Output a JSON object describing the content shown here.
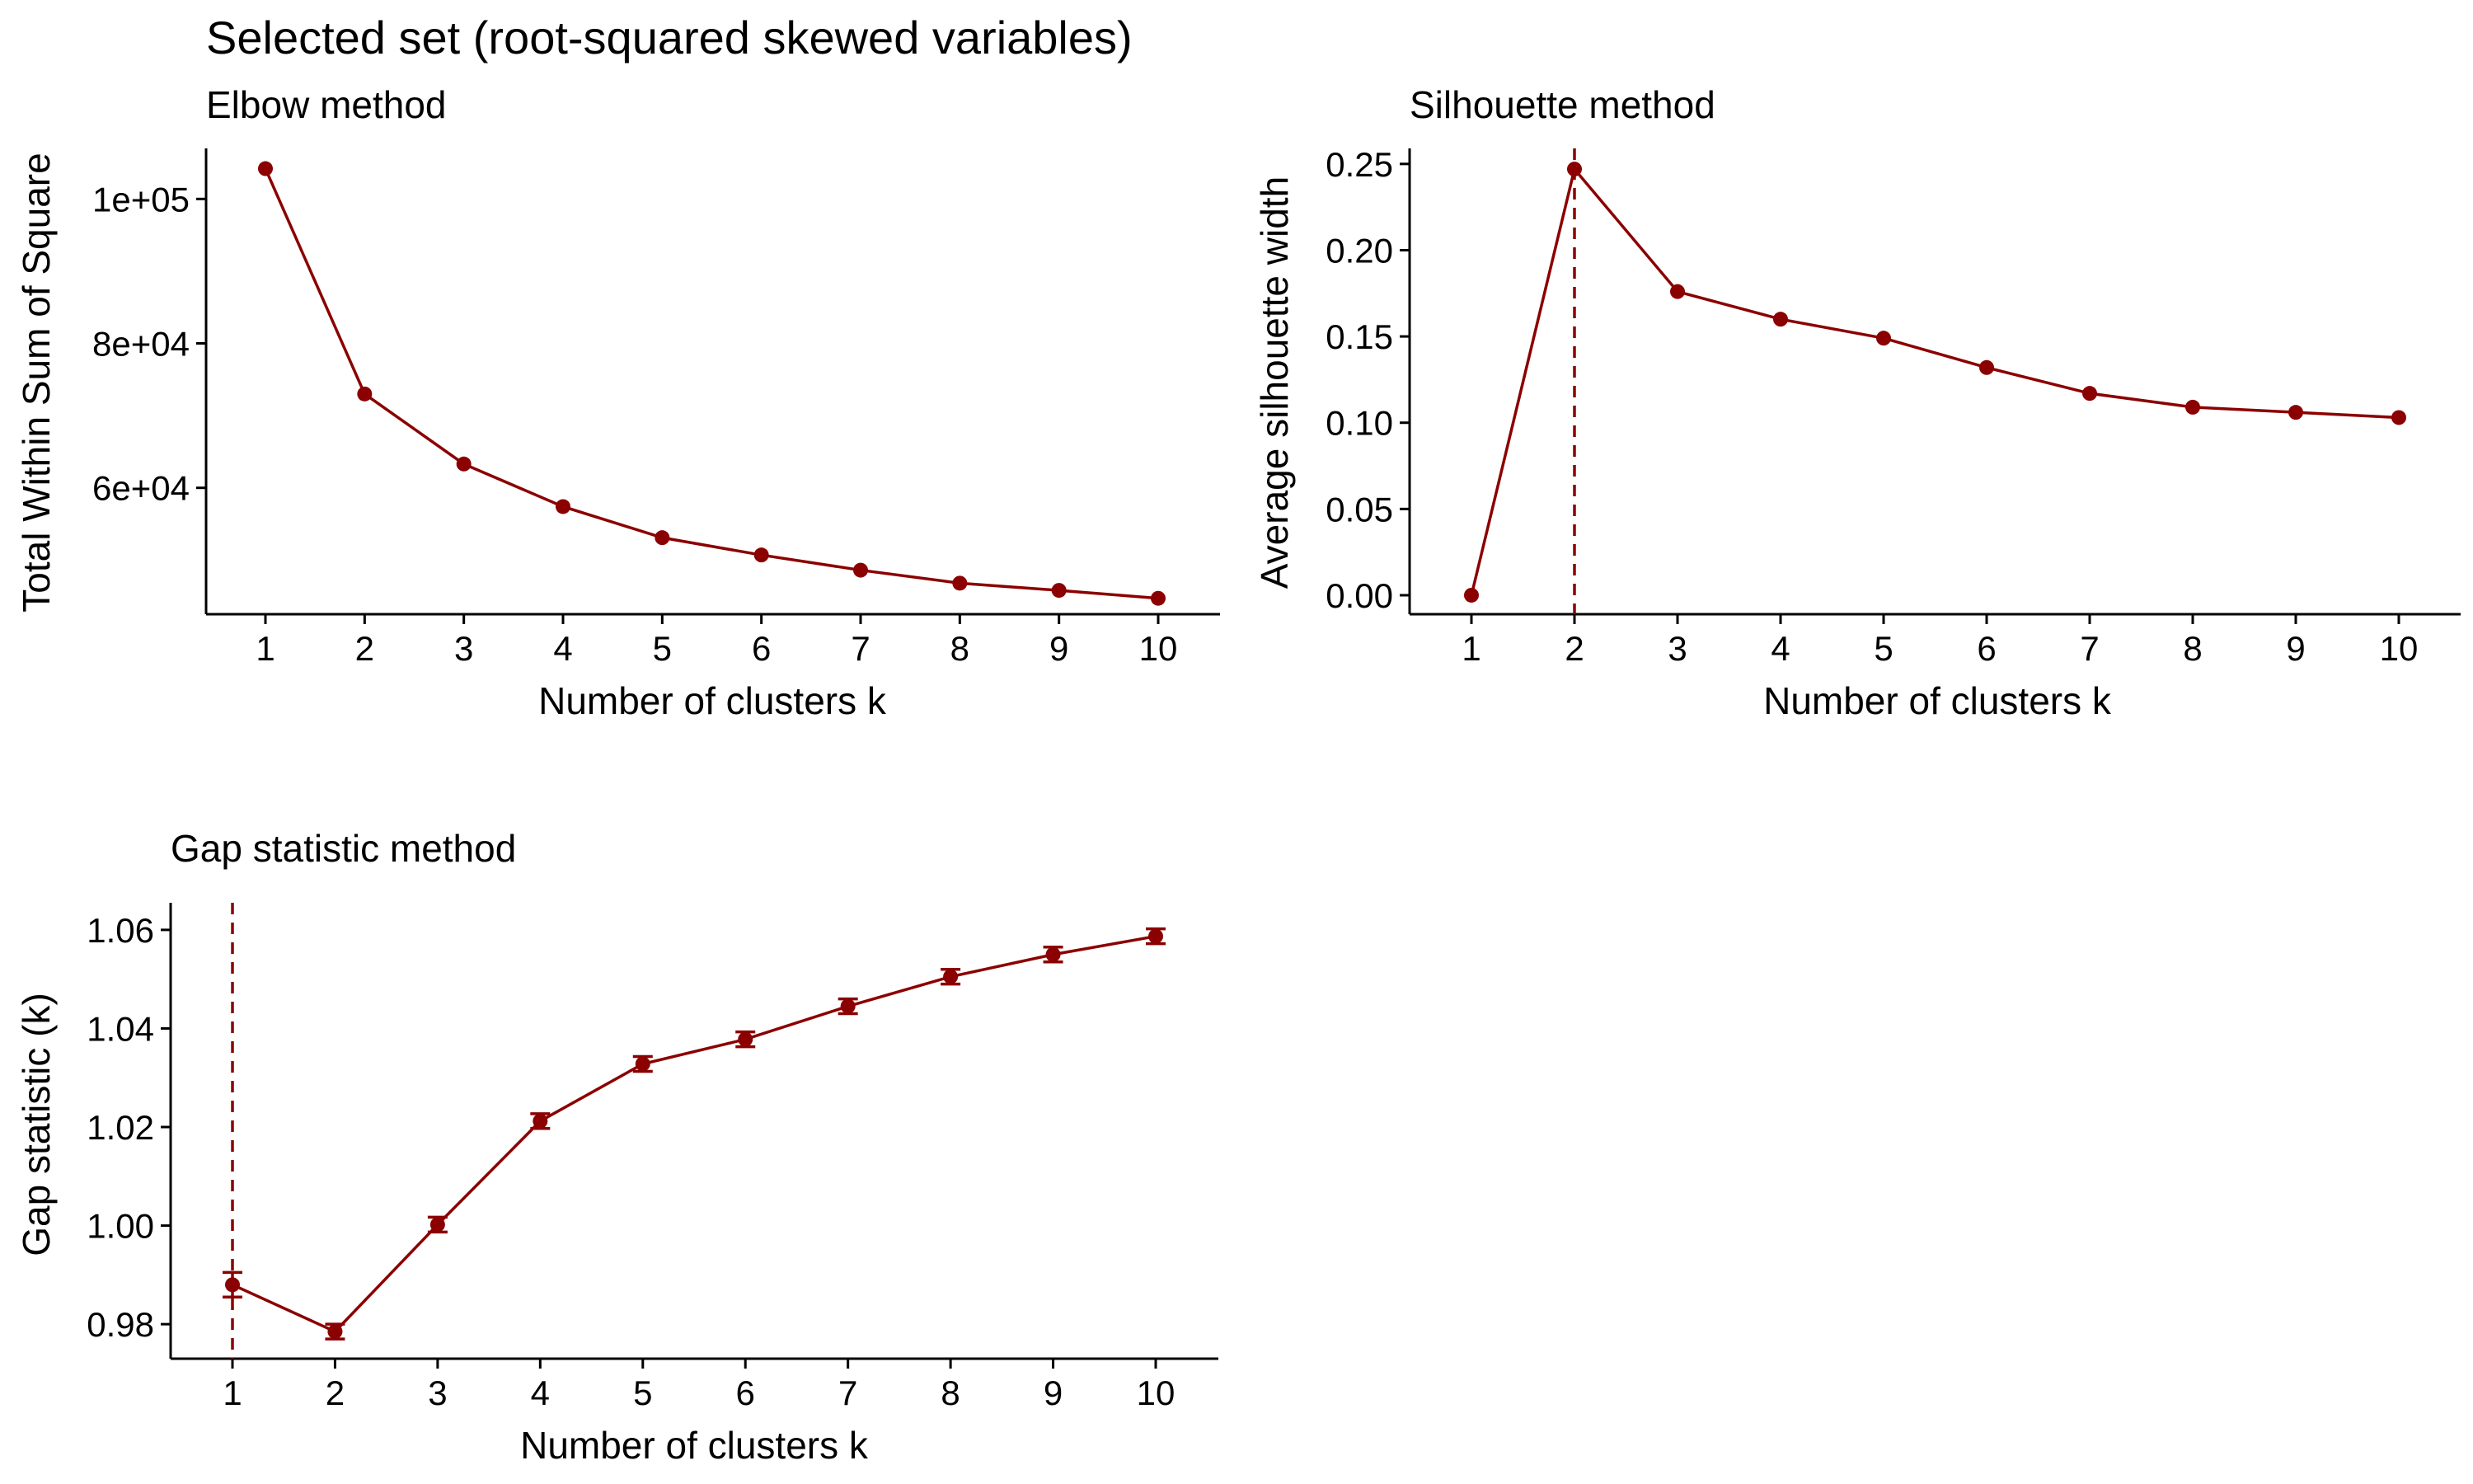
{
  "figure_title": "Selected set (root-squared skewed variables)",
  "chart_data": [
    {
      "type": "line",
      "title": "Elbow method",
      "xlabel": "Number of clusters k",
      "ylabel": "Total Within Sum of Square",
      "x": [
        1,
        2,
        3,
        4,
        5,
        6,
        7,
        8,
        9,
        10
      ],
      "values": [
        104200,
        73000,
        63300,
        57400,
        53100,
        50700,
        48600,
        46800,
        45800,
        44700
      ],
      "y_ticks": [
        60000,
        80000,
        100000
      ],
      "y_tick_labels": [
        "6e+04",
        "8e+04",
        "1e+05"
      ],
      "ylim": [
        42500,
        107000
      ],
      "color": "#8b0000",
      "grid": false
    },
    {
      "type": "line",
      "title": "Silhouette method",
      "xlabel": "Number of clusters k",
      "ylabel": "Average silhouette width",
      "x": [
        1,
        2,
        3,
        4,
        5,
        6,
        7,
        8,
        9,
        10
      ],
      "values": [
        0.0,
        0.247,
        0.176,
        0.16,
        0.149,
        0.132,
        0.117,
        0.109,
        0.106,
        0.103
      ],
      "y_ticks": [
        0.0,
        0.05,
        0.1,
        0.15,
        0.2,
        0.25
      ],
      "y_tick_labels": [
        "0.00",
        "0.05",
        "0.10",
        "0.15",
        "0.20",
        "0.25"
      ],
      "ylim": [
        -0.011,
        0.259
      ],
      "optimal_k": 2,
      "color": "#8b0000",
      "grid": false
    },
    {
      "type": "line",
      "title": "Gap statistic method",
      "xlabel": "Number of clusters k",
      "ylabel": "Gap statistic (k)",
      "x": [
        1,
        2,
        3,
        4,
        5,
        6,
        7,
        8,
        9,
        10
      ],
      "values": [
        0.988,
        0.9785,
        1.0002,
        1.0212,
        1.0328,
        1.0378,
        1.0445,
        1.0505,
        1.055,
        1.0587
      ],
      "error": [
        0.0025,
        0.0015,
        0.0015,
        0.0015,
        0.0015,
        0.0015,
        0.0015,
        0.0015,
        0.0015,
        0.0015
      ],
      "y_ticks": [
        0.98,
        1.0,
        1.02,
        1.04,
        1.06
      ],
      "y_tick_labels": [
        "0.98",
        "1.00",
        "1.02",
        "1.04",
        "1.06"
      ],
      "ylim": [
        0.973,
        1.0655
      ],
      "optimal_k": 1,
      "color": "#8b0000",
      "grid": false
    }
  ]
}
